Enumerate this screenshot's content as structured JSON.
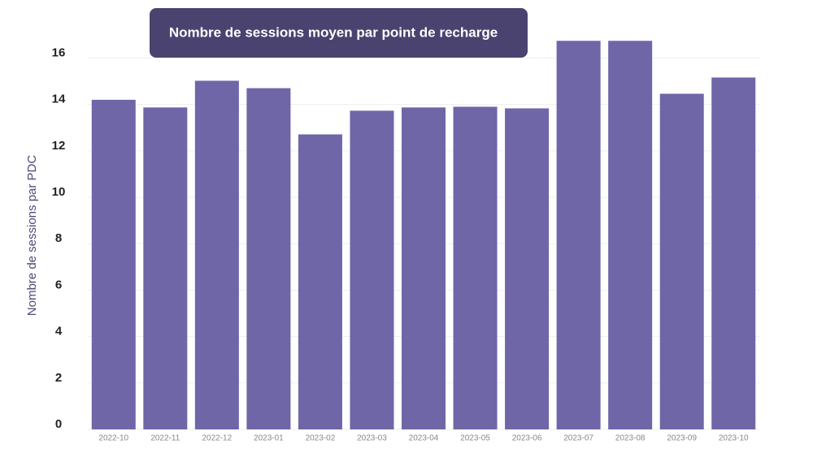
{
  "chart_data": {
    "type": "bar",
    "title": "Nombre de sessions moyen par point de recharge",
    "y_label": "Nombre de sessions par PDC",
    "categories": [
      "2022-10",
      "2022-11",
      "2022-12",
      "2023-01",
      "2023-02",
      "2023-03",
      "2023-04",
      "2023-05",
      "2023-06",
      "2023-07",
      "2023-08",
      "2023-09",
      "2023-10"
    ],
    "values": [
      14.2,
      13.87,
      15.02,
      14.7,
      12.71,
      13.73,
      13.87,
      13.9,
      13.83,
      16.74,
      16.74,
      14.46,
      15.16
    ],
    "color": "#6f66a8",
    "ylim": [
      0,
      17.1
    ],
    "yticks": [
      0,
      2,
      4,
      6,
      8,
      10,
      12,
      14,
      16
    ],
    "grid": true
  }
}
